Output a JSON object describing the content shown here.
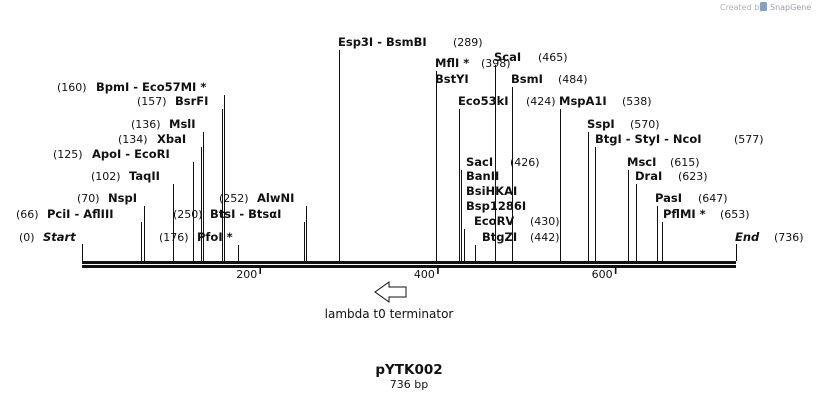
{
  "credit": {
    "prefix": "Created by",
    "brand": "SnapGene"
  },
  "map": {
    "name": "pYTK002",
    "length_label": "736 bp",
    "total_bp": 736,
    "ticks": [
      {
        "bp": 200,
        "label": "200"
      },
      {
        "bp": 400,
        "label": "400"
      },
      {
        "bp": 600,
        "label": "600"
      }
    ],
    "ends": [
      {
        "name": "Start",
        "pos_label": "(0)"
      },
      {
        "name": "End",
        "pos_label": "(736)"
      }
    ],
    "feature": {
      "name": "lambda t0 terminator",
      "direction": "reverse"
    },
    "enzymes": [
      {
        "name": "PciI  -  AflIII",
        "pos": 66,
        "pos_label": "(66)"
      },
      {
        "name": "NspI",
        "pos": 70,
        "pos_label": "(70)"
      },
      {
        "name": "TaqII",
        "pos": 102,
        "pos_label": "(102)"
      },
      {
        "name": "ApoI  -  EcoRI",
        "pos": 125,
        "pos_label": "(125)"
      },
      {
        "name": "XbaI",
        "pos": 134,
        "pos_label": "(134)"
      },
      {
        "name": "MslI",
        "pos": 136,
        "pos_label": "(136)"
      },
      {
        "name": "BsrFI",
        "pos": 157,
        "pos_label": "(157)"
      },
      {
        "name": "BpmI  -  Eco57MI *",
        "pos": 160,
        "pos_label": "(160)"
      },
      {
        "name": "PfoI *",
        "pos": 176,
        "pos_label": "(176)"
      },
      {
        "name": "BtsI  -  BtsαI",
        "pos": 250,
        "pos_label": "(250)"
      },
      {
        "name": "AlwNI",
        "pos": 252,
        "pos_label": "(252)"
      },
      {
        "name": "Esp3I  -  BsmBI",
        "pos": 289,
        "pos_label": "(289)"
      },
      {
        "name": "MflI *",
        "pos": 398,
        "pos_label": "(398)"
      },
      {
        "name": "BstYI",
        "pos": 398,
        "pos_label": ""
      },
      {
        "name": "Eco53kI",
        "pos": 424,
        "pos_label": "(424)"
      },
      {
        "name": "SacI",
        "pos": 426,
        "pos_label": "(426)"
      },
      {
        "name": "BanII",
        "pos": 426,
        "pos_label": ""
      },
      {
        "name": "BsiHKAI",
        "pos": 426,
        "pos_label": ""
      },
      {
        "name": "Bsp1286I",
        "pos": 426,
        "pos_label": ""
      },
      {
        "name": "EcoRV",
        "pos": 430,
        "pos_label": "(430)"
      },
      {
        "name": "BtgZI",
        "pos": 442,
        "pos_label": "(442)"
      },
      {
        "name": "ScaI",
        "pos": 465,
        "pos_label": "(465)"
      },
      {
        "name": "BsmI",
        "pos": 484,
        "pos_label": "(484)"
      },
      {
        "name": "MspA1I",
        "pos": 538,
        "pos_label": "(538)"
      },
      {
        "name": "SspI",
        "pos": 570,
        "pos_label": "(570)"
      },
      {
        "name": "BtgI  -  StyI  -  NcoI",
        "pos": 577,
        "pos_label": "(577)"
      },
      {
        "name": "MscI",
        "pos": 615,
        "pos_label": "(615)"
      },
      {
        "name": "DraI",
        "pos": 623,
        "pos_label": "(623)"
      },
      {
        "name": "PasI",
        "pos": 647,
        "pos_label": "(647)"
      },
      {
        "name": "PflMI *",
        "pos": 653,
        "pos_label": "(653)"
      }
    ]
  }
}
